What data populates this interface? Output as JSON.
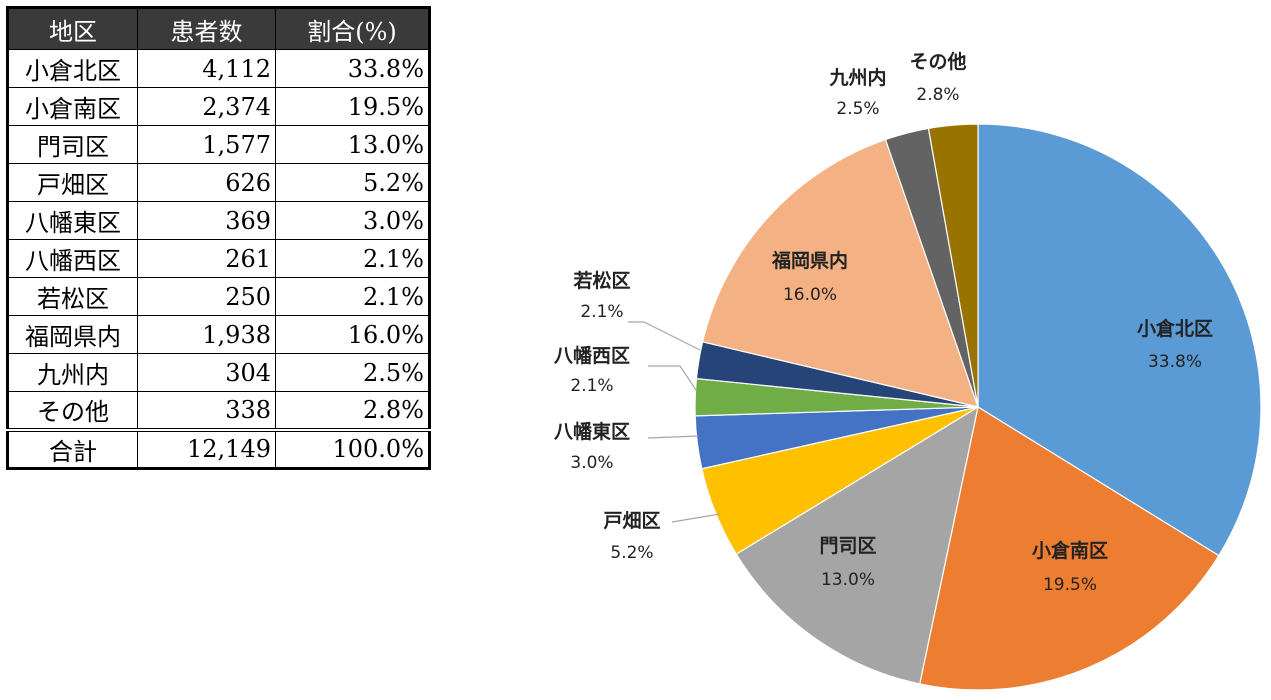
{
  "table": {
    "headers": [
      "地区",
      "患者数",
      "割合(%)"
    ],
    "rows": [
      [
        "小倉北区",
        "4,112",
        "33.8%"
      ],
      [
        "小倉南区",
        "2,374",
        "19.5%"
      ],
      [
        "門司区",
        "1,577",
        "13.0%"
      ],
      [
        "戸畑区",
        "626",
        "5.2%"
      ],
      [
        "八幡東区",
        "369",
        "3.0%"
      ],
      [
        "八幡西区",
        "261",
        "2.1%"
      ],
      [
        "若松区",
        "250",
        "2.1%"
      ],
      [
        "福岡県内",
        "1,938",
        "16.0%"
      ],
      [
        "九州内",
        "304",
        "2.5%"
      ],
      [
        "その他",
        "338",
        "2.8%"
      ]
    ],
    "total": [
      "合計",
      "12,149",
      "100.0%"
    ]
  },
  "chart_data": {
    "type": "pie",
    "start": "top",
    "direction": "clockwise",
    "slices": [
      {
        "label": "小倉北区",
        "value": 33.8,
        "pct_label": "33.8%",
        "color": "#5b9bd5",
        "label_pos": "inside"
      },
      {
        "label": "小倉南区",
        "value": 19.5,
        "pct_label": "19.5%",
        "color": "#ed7d31",
        "label_pos": "inside"
      },
      {
        "label": "門司区",
        "value": 13.0,
        "pct_label": "13.0%",
        "color": "#a5a5a5",
        "label_pos": "inside"
      },
      {
        "label": "戸畑区",
        "value": 5.2,
        "pct_label": "5.2%",
        "color": "#ffc000",
        "label_pos": "outside"
      },
      {
        "label": "八幡東区",
        "value": 3.0,
        "pct_label": "3.0%",
        "color": "#4472c4",
        "label_pos": "outside"
      },
      {
        "label": "八幡西区",
        "value": 2.1,
        "pct_label": "2.1%",
        "color": "#70ad47",
        "label_pos": "outside"
      },
      {
        "label": "若松区",
        "value": 2.1,
        "pct_label": "2.1%",
        "color": "#264478",
        "label_pos": "outside"
      },
      {
        "label": "福岡県内",
        "value": 16.0,
        "pct_label": "16.0%",
        "color": "#f4b183",
        "label_pos": "inside"
      },
      {
        "label": "九州内",
        "value": 2.5,
        "pct_label": "2.5%",
        "color": "#636363",
        "label_pos": "outside"
      },
      {
        "label": "その他",
        "value": 2.8,
        "pct_label": "2.8%",
        "color": "#997300",
        "label_pos": "outside"
      }
    ]
  }
}
